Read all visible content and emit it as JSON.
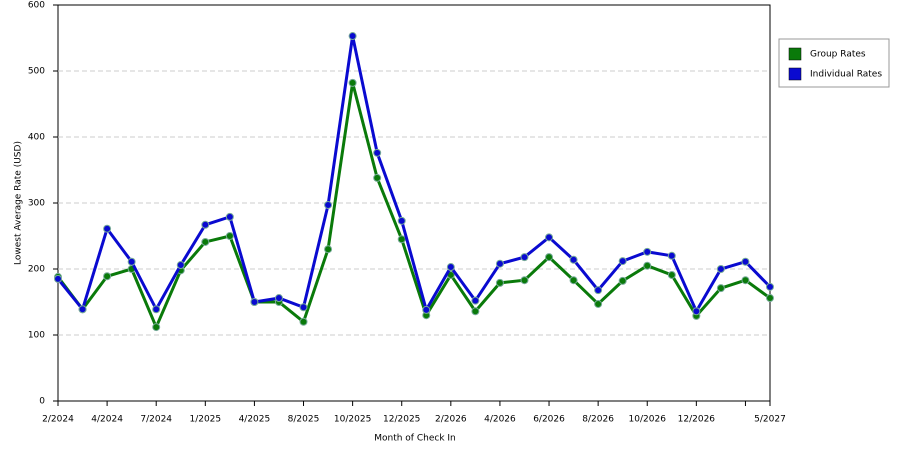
{
  "chart_data": {
    "type": "line",
    "x_label": "Month of Check In",
    "y_label": "Lowest Average Rate (USD)",
    "categories": [
      "2/2024",
      null,
      "4/2024",
      null,
      "7/2024",
      null,
      "1/2025",
      null,
      "4/2025",
      null,
      "8/2025",
      null,
      "10/2025",
      null,
      "12/2025",
      null,
      "2/2026",
      null,
      "4/2026",
      null,
      "6/2026",
      null,
      "8/2026",
      null,
      "10/2026",
      null,
      "12/2026",
      null,
      null,
      "5/2027"
    ],
    "series": [
      {
        "name": "Group Rates",
        "color": "#0a7a0a",
        "values": [
          188,
          139,
          189,
          200,
          112,
          198,
          241,
          250,
          150,
          150,
          120,
          230,
          482,
          338,
          245,
          130,
          191,
          136,
          179,
          183,
          218,
          183,
          147,
          182,
          205,
          191,
          129,
          171,
          183,
          156
        ]
      },
      {
        "name": "Individual Rates",
        "color": "#0a0ad0",
        "values": [
          185,
          139,
          261,
          211,
          139,
          206,
          267,
          279,
          150,
          156,
          142,
          297,
          553,
          376,
          273,
          138,
          203,
          152,
          208,
          218,
          248,
          214,
          168,
          212,
          226,
          220,
          136,
          200,
          211,
          173
        ]
      }
    ],
    "ylim": [
      0,
      600
    ],
    "yticks": [
      0,
      100,
      200,
      300,
      400,
      500,
      600
    ],
    "grid": true,
    "legend": "right"
  }
}
